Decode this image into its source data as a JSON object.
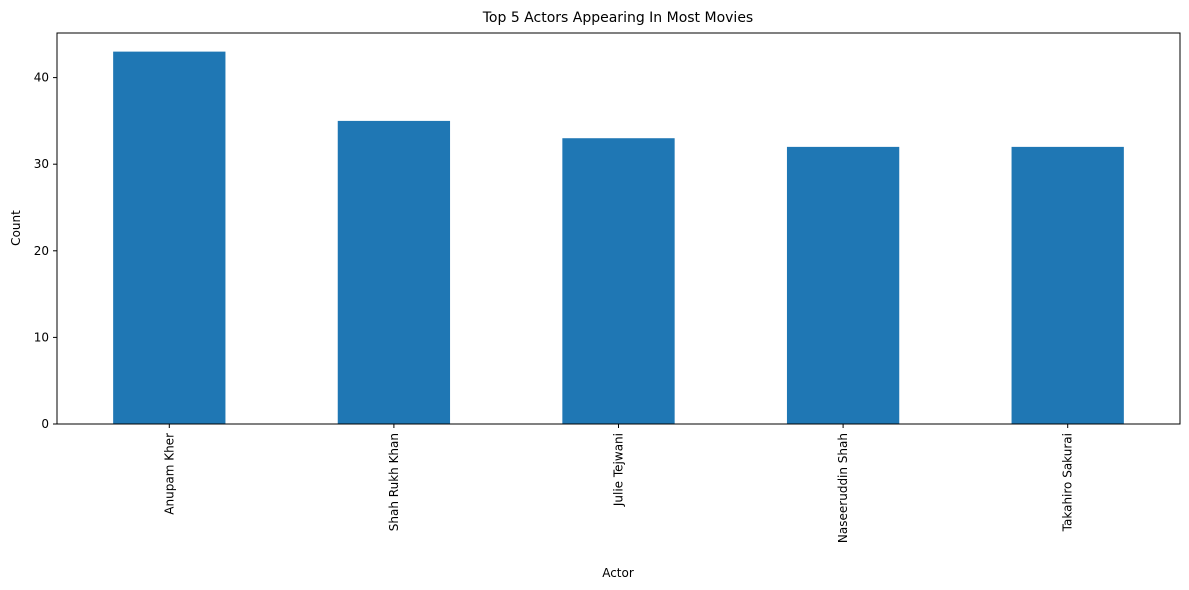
{
  "chart_data": {
    "type": "bar",
    "title": "Top 5 Actors Appearing In Most Movies",
    "xlabel": "Actor",
    "ylabel": "Count",
    "categories": [
      "Anupam Kher",
      "Shah Rukh Khan",
      "Julie Tejwani",
      "Naseeruddin Shah",
      "Takahiro Sakurai"
    ],
    "values": [
      43,
      35,
      33,
      32,
      32
    ],
    "ylim": [
      0,
      45.15
    ],
    "yticks": [
      0,
      10,
      20,
      30,
      40
    ],
    "ytick_labels": [
      "0",
      "10",
      "20",
      "30",
      "40"
    ],
    "grid": false,
    "legend": "none",
    "bar_color": "#1f77b4",
    "x_tick_rotation": "vertical"
  }
}
